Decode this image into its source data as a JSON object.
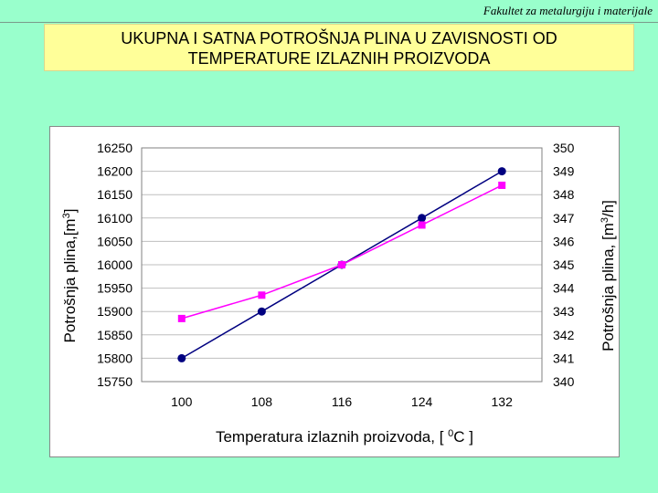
{
  "header": {
    "note": "Fakultet za metalurgiju i materijale"
  },
  "slide": {
    "title_line1": "UKUPNA I SATNA POTROŠNJA PLINA U ZAVISNOSTI OD",
    "title_line2": "TEMPERATURE IZLAZNIH PROIZVODA"
  },
  "colors": {
    "background": "#99ffcc",
    "title_fill": "#ffff99",
    "series_total": "#000080",
    "series_hourly": "#ff00ff",
    "grid": "#bfbfbf"
  },
  "chart_data": {
    "type": "line",
    "categories": [
      "100",
      "108",
      "116",
      "124",
      "132"
    ],
    "series": [
      {
        "axis": "left",
        "marker": "circle",
        "values": [
          15800,
          15900,
          16000,
          16100,
          16200
        ]
      },
      {
        "axis": "right",
        "marker": "square",
        "values": [
          342.7,
          343.7,
          345.0,
          346.7,
          348.4
        ]
      }
    ],
    "xlabel": {
      "prefix": "Temperatura izlaznih proizvoda, [ ",
      "sup": "0",
      "suffix": "C ]"
    },
    "ylabel_left": {
      "prefix": "Potrošnja plina,[m",
      "sup": "3",
      "suffix": "]"
    },
    "ylabel_right": {
      "prefix": "Potrošnja plina, [m",
      "sup": "3",
      "suffix": "/h]"
    },
    "y_left": {
      "min": 15750,
      "max": 16250,
      "step": 50
    },
    "y_right": {
      "min": 340,
      "max": 350,
      "step": 1
    },
    "grid": true,
    "legend": "none"
  }
}
